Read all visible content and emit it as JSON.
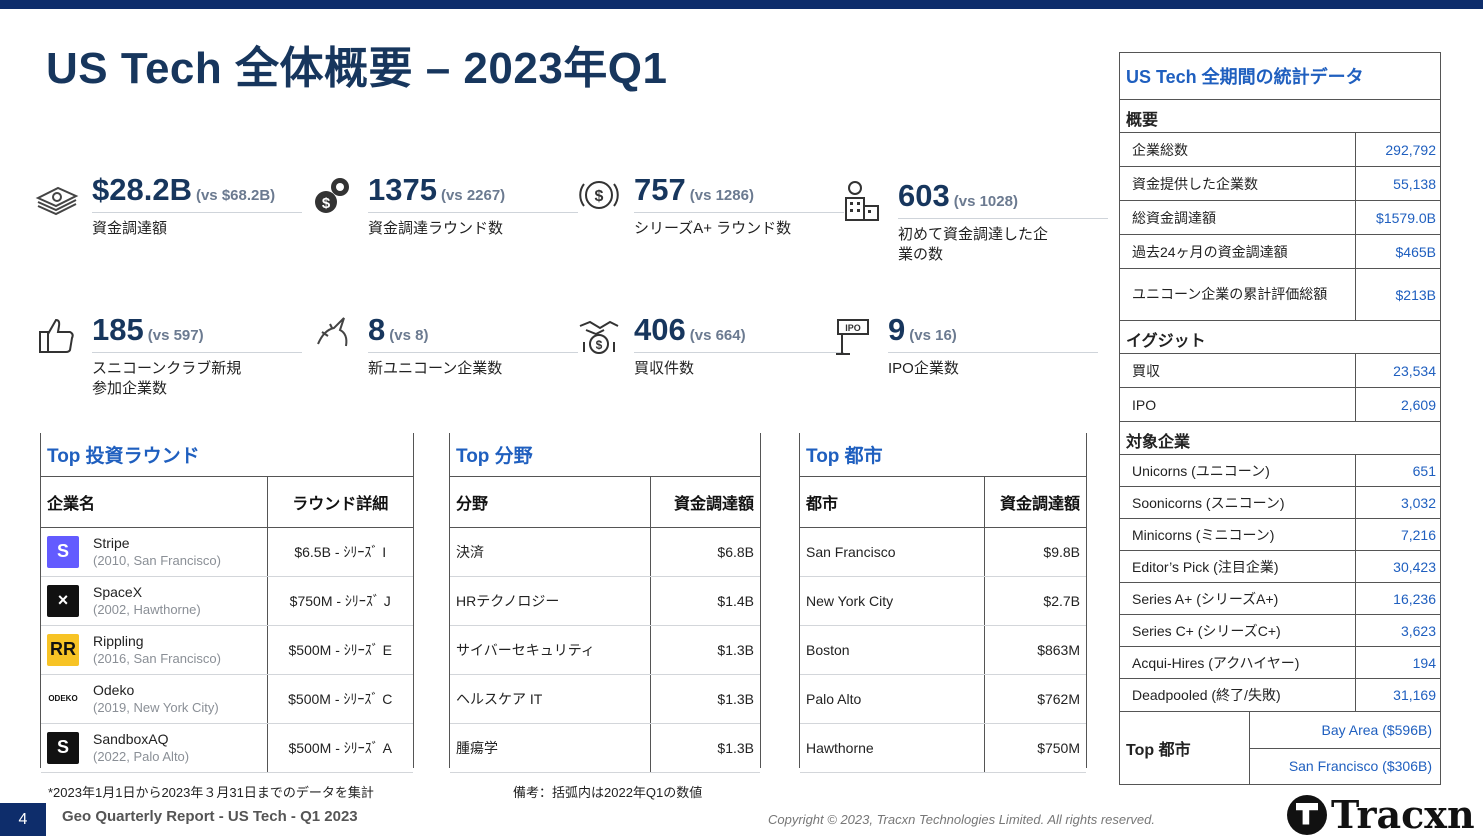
{
  "title": "US Tech 全体概要 – 2023年Q1",
  "stats": [
    {
      "value": "$28.2B",
      "vs": "(vs $68.2B)",
      "label": "資金調達額",
      "icon": "money-stack-icon"
    },
    {
      "value": "1375",
      "vs": "(vs 2267)",
      "label": "資金調達ラウンド数",
      "icon": "gear-dollar-icon"
    },
    {
      "value": "757",
      "vs": "(vs 1286)",
      "label": "シリーズA+ ラウンド数",
      "icon": "dollar-coin-icon"
    },
    {
      "value": "603",
      "vs": "(vs 1028)",
      "label": "初めて資金調達した企業の数",
      "icon": "building-dollar-icon"
    },
    {
      "value": "185",
      "vs": "(vs 597)",
      "label": "スニコーンクラブ新規参加企業数",
      "icon": "thumbs-up-icon"
    },
    {
      "value": "8",
      "vs": "(vs 8)",
      "label": "新ユニコーン企業数",
      "icon": "unicorn-icon"
    },
    {
      "value": "406",
      "vs": "(vs 664)",
      "label": "買収件数",
      "icon": "handshake-dollar-icon"
    },
    {
      "value": "9",
      "vs": "(vs 16)",
      "label": "IPO企業数",
      "icon": "ipo-sign-icon"
    }
  ],
  "top_rounds": {
    "title": "Top 投資ラウンド",
    "col1": "企業名",
    "col2": "ラウンド詳細",
    "rows": [
      {
        "name": "Stripe",
        "sub": "(2010, San Francisco)",
        "detail": "$6.5B - ｼﾘｰｽﾞ I",
        "logo_color": "#635bff",
        "logo_text": "S"
      },
      {
        "name": "SpaceX",
        "sub": "(2002, Hawthorne)",
        "detail": "$750M - ｼﾘｰｽﾞ J",
        "logo_color": "#111111",
        "logo_text": "×"
      },
      {
        "name": "Rippling",
        "sub": "(2016, San Francisco)",
        "detail": "$500M - ｼﾘｰｽﾞ E",
        "logo_color": "#f7c325",
        "logo_text": "RR"
      },
      {
        "name": "Odeko",
        "sub": "(2019, New York City)",
        "detail": "$500M - ｼﾘｰｽﾞ C",
        "logo_color": "#ffffff",
        "logo_text": "ODEKO"
      },
      {
        "name": "SandboxAQ",
        "sub": "(2022, Palo Alto)",
        "detail": "$500M - ｼﾘｰｽﾞ A",
        "logo_color": "#111111",
        "logo_text": "S"
      }
    ]
  },
  "top_sectors": {
    "title": "Top 分野",
    "col1": "分野",
    "col2": "資金調達額",
    "rows": [
      {
        "k": "決済",
        "v": "$6.8B"
      },
      {
        "k": "HRテクノロジー",
        "v": "$1.4B"
      },
      {
        "k": "サイバーセキュリティ",
        "v": "$1.3B"
      },
      {
        "k": "ヘルスケア IT",
        "v": "$1.3B"
      },
      {
        "k": "腫瘍学",
        "v": "$1.3B"
      }
    ]
  },
  "top_cities": {
    "title": "Top 都市",
    "col1": "都市",
    "col2": "資金調達額",
    "rows": [
      {
        "k": "San Francisco",
        "v": "$9.8B"
      },
      {
        "k": "New York City",
        "v": "$2.7B"
      },
      {
        "k": "Boston",
        "v": "$863M"
      },
      {
        "k": "Palo Alto",
        "v": "$762M"
      },
      {
        "k": "Hawthorne",
        "v": "$750M"
      }
    ]
  },
  "side": {
    "title": "US Tech 全期間の統計データ",
    "sections": [
      {
        "name": "概要",
        "rows": [
          {
            "k": "企業総数",
            "v": "292,792"
          },
          {
            "k": "資金提供した企業数",
            "v": "55,138"
          },
          {
            "k": "総資金調達額",
            "v": "$1579.0B"
          },
          {
            "k": "過去24ヶ月の資金調達額",
            "v": "$465B"
          },
          {
            "k": "ユニコーン企業の累計評価総額",
            "v": "$213B"
          }
        ]
      },
      {
        "name": "イグジット",
        "rows": [
          {
            "k": "買収",
            "v": "23,534"
          },
          {
            "k": "IPO",
            "v": "2,609"
          }
        ]
      },
      {
        "name": "対象企業",
        "rows": [
          {
            "k": "Unicorns (ユニコーン)",
            "v": "651"
          },
          {
            "k": "Soonicorns (スニコーン)",
            "v": "3,032"
          },
          {
            "k": "Minicorns (ミニコーン)",
            "v": "7,216"
          },
          {
            "k": "Editor’s Pick (注目企業)",
            "v": "30,423"
          },
          {
            "k": "Series A+ (シリーズA+)",
            "v": "16,236"
          },
          {
            "k": "Series C+ (シリーズC+)",
            "v": "3,623"
          },
          {
            "k": "Acqui-Hires (アクハイヤー)",
            "v": "194"
          },
          {
            "k": "Deadpooled (終了/失敗)",
            "v": "31,169"
          }
        ]
      }
    ]
  },
  "top_city_box": {
    "label": "Top 都市",
    "v1": "Bay Area ($596B)",
    "v2": "San Francisco ($306B)"
  },
  "notes": {
    "left": "*2023年1月1日から2023年３月31日までのデータを集計",
    "mid": "備考：括弧内は2022年Q1の数値"
  },
  "footer": {
    "page": "4",
    "report": "Geo Quarterly Report - US Tech - Q1 2023",
    "copyright": "Copyright © 2023, Tracxn Technologies Limited. All rights reserved.",
    "brand": "Tracxn"
  },
  "colors": {
    "navy": "#0e2d6b",
    "title": "#17365d",
    "accent": "#1f5fbf"
  }
}
